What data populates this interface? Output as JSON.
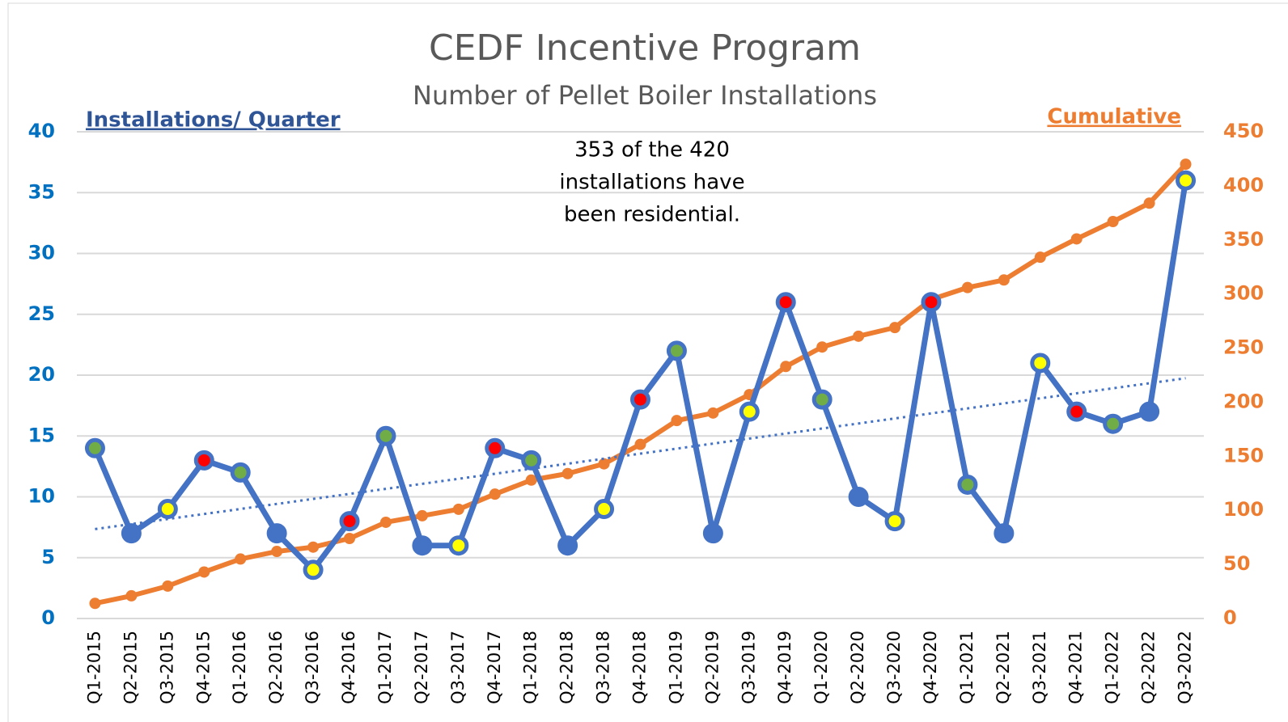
{
  "chart_data": {
    "type": "line",
    "title": "CEDF Incentive Program",
    "subtitle": "Number of Pellet Boiler Installations",
    "annotation": [
      "353 of the 420",
      "installations have",
      "been residential."
    ],
    "categories": [
      "Q1-2015",
      "Q2-2015",
      "Q3-2015",
      "Q4-2015",
      "Q1-2016",
      "Q2-2016",
      "Q3-2016",
      "Q4-2016",
      "Q1-2017",
      "Q2-2017",
      "Q3-2017",
      "Q4-2017",
      "Q1-2018",
      "Q2-2018",
      "Q3-2018",
      "Q4-2018",
      "Q1-2019",
      "Q2-2019",
      "Q3-2019",
      "Q4-2019",
      "Q1-2020",
      "Q2-2020",
      "Q3-2020",
      "Q4-2020",
      "Q1-2021",
      "Q2-2021",
      "Q3-2021",
      "Q4-2021",
      "Q1-2022",
      "Q2-2022",
      "Q3-2022"
    ],
    "series": [
      {
        "name": "Installations/ Quarter",
        "color": "#4472c4",
        "axis": "y",
        "trendline": true,
        "values": [
          14,
          7,
          9,
          13,
          12,
          7,
          4,
          8,
          15,
          6,
          6,
          14,
          13,
          6,
          9,
          18,
          22,
          7,
          17,
          26,
          18,
          10,
          8,
          26,
          11,
          7,
          21,
          17,
          16,
          17,
          36
        ],
        "marker_colors": [
          "#70ad47",
          "#4472c4",
          "#ffff00",
          "#ff0000",
          "#70ad47",
          "#4472c4",
          "#ffff00",
          "#ff0000",
          "#70ad47",
          "#4472c4",
          "#ffff00",
          "#ff0000",
          "#70ad47",
          "#4472c4",
          "#ffff00",
          "#ff0000",
          "#70ad47",
          "#4472c4",
          "#ffff00",
          "#ff0000",
          "#70ad47",
          "#4472c4",
          "#ffff00",
          "#ff0000",
          "#70ad47",
          "#4472c4",
          "#ffff00",
          "#ff0000",
          "#70ad47",
          "#4472c4",
          "#ffff00"
        ]
      },
      {
        "name": "Cumulative",
        "color": "#ed7d31",
        "axis": "y2",
        "values": [
          14,
          21,
          30,
          43,
          55,
          62,
          66,
          74,
          89,
          95,
          101,
          115,
          128,
          134,
          143,
          161,
          183,
          190,
          207,
          233,
          251,
          261,
          269,
          295,
          306,
          313,
          334,
          351,
          367,
          384,
          420
        ]
      }
    ],
    "ylim": [
      0,
      40
    ],
    "yticks": [
      0,
      5,
      10,
      15,
      20,
      25,
      30,
      35,
      40
    ],
    "y2lim": [
      0,
      450
    ],
    "y2ticks": [
      0,
      50,
      100,
      150,
      200,
      250,
      300,
      350,
      400,
      450
    ],
    "grid": true
  }
}
